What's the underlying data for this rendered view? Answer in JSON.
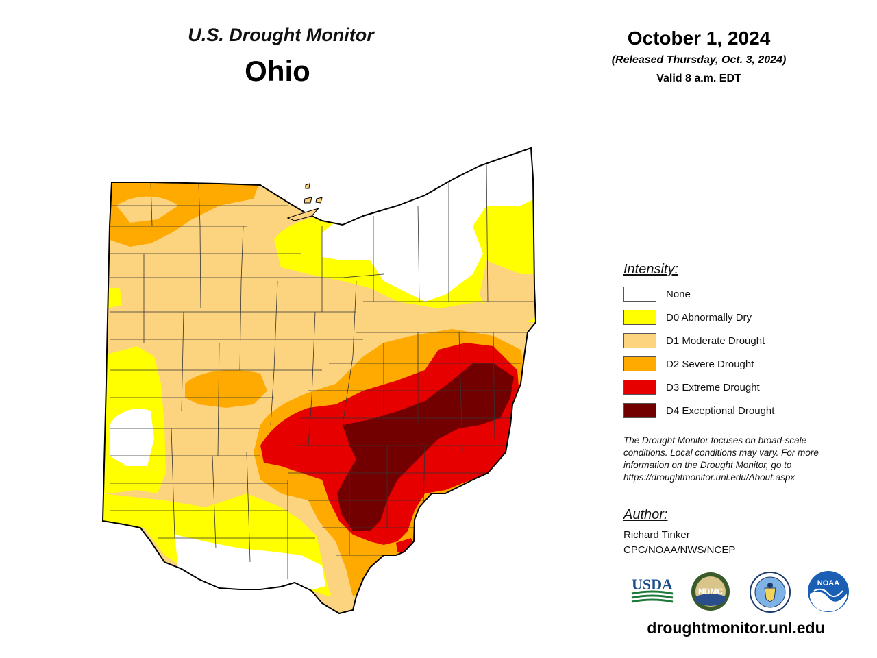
{
  "header": {
    "subtitle": "U.S. Drought Monitor",
    "state": "Ohio",
    "date": "October 1, 2024",
    "released": "(Released Thursday, Oct. 3, 2024)",
    "valid": "Valid 8 a.m. EDT"
  },
  "legend": {
    "title": "Intensity:",
    "items": [
      {
        "label": "None",
        "color": "#FFFFFF"
      },
      {
        "label": "D0 Abnormally Dry",
        "color": "#FFFF00"
      },
      {
        "label": "D1 Moderate Drought",
        "color": "#FCD37F"
      },
      {
        "label": "D2 Severe Drought",
        "color": "#FFAA00"
      },
      {
        "label": "D3 Extreme Drought",
        "color": "#E60000"
      },
      {
        "label": "D4 Exceptional Drought",
        "color": "#730000"
      }
    ]
  },
  "disclaimer": {
    "line1": "The Drought Monitor focuses on broad-scale",
    "line2": "conditions. Local conditions may vary. For more",
    "line3": "information on the Drought Monitor, go to",
    "line4": "https://droughtmonitor.unl.edu/About.aspx"
  },
  "author": {
    "title": "Author:",
    "name": "Richard Tinker",
    "org": "CPC/NOAA/NWS/NCEP"
  },
  "logos": {
    "usda": "USDA",
    "ndmc": "NDMC",
    "noaa": "NOAA"
  },
  "website": "droughtmonitor.unl.edu"
}
